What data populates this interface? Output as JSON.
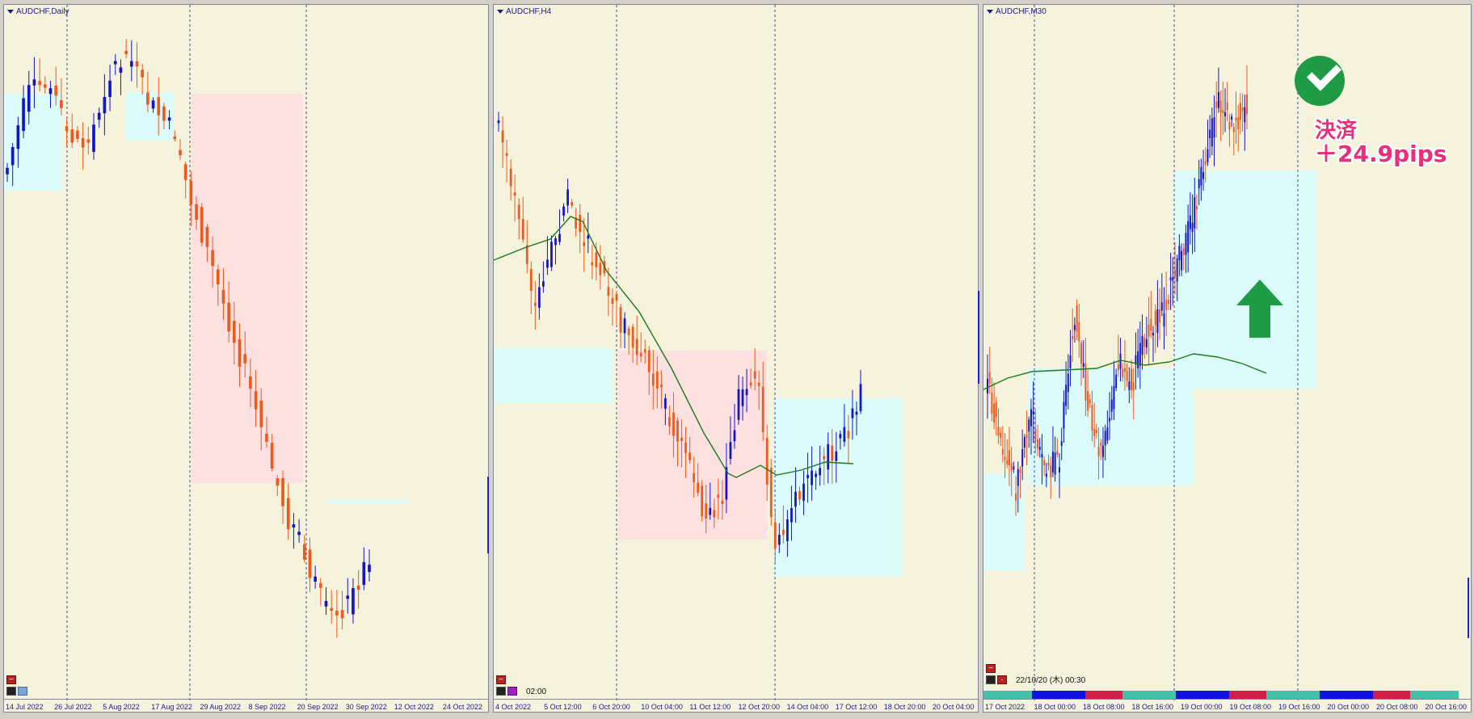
{
  "panels": [
    {
      "id": "daily",
      "title": "AUDCHF,Daily",
      "x_labels": [
        "14 Jul 2022",
        "26 Jul 2022",
        "5 Aug 2022",
        "17 Aug 2022",
        "29 Aug 2022",
        "8 Sep 2022",
        "20 Sep 2022",
        "30 Sep 2022",
        "12 Oct 2022",
        "24 Oct 2022"
      ]
    },
    {
      "id": "h4",
      "title": "AUDCHF,H4",
      "time_label": "02:00",
      "x_labels": [
        "4 Oct 2022",
        "5 Oct 12:00",
        "6 Oct 20:00",
        "10 Oct 04:00",
        "11 Oct 12:00",
        "12 Oct 20:00",
        "14 Oct 04:00",
        "17 Oct 12:00",
        "18 Oct 20:00",
        "20 Oct 04:00"
      ]
    },
    {
      "id": "m30",
      "title": "AUDCHF,M30",
      "datetime_label": "22/10/20 (木) 00:30",
      "x_labels": [
        "17 Oct 2022",
        "18 Oct 00:00",
        "18 Oct 08:00",
        "18 Oct 16:00",
        "19 Oct 00:00",
        "19 Oct 08:00",
        "19 Oct 16:00",
        "20 Oct 00:00",
        "20 Oct 08:00",
        "20 Oct 16:00"
      ],
      "result_line1": "決済",
      "result_line2": "＋24.9pips"
    }
  ],
  "colors": {
    "bull": "#1515c8",
    "bear": "#ee5a1e",
    "ma": "#1c7a1c",
    "demand_zone": "#dcfbfb",
    "supply_zone": "#fde0e0",
    "chart_bg": "#f5f3dc",
    "grid": "#1a1a8c",
    "check": "#1f9b45",
    "result_text": "#e8307a"
  },
  "icons": [
    "minus-icon",
    "chart-tool-icon",
    "check-icon",
    "up-arrow-icon"
  ]
}
